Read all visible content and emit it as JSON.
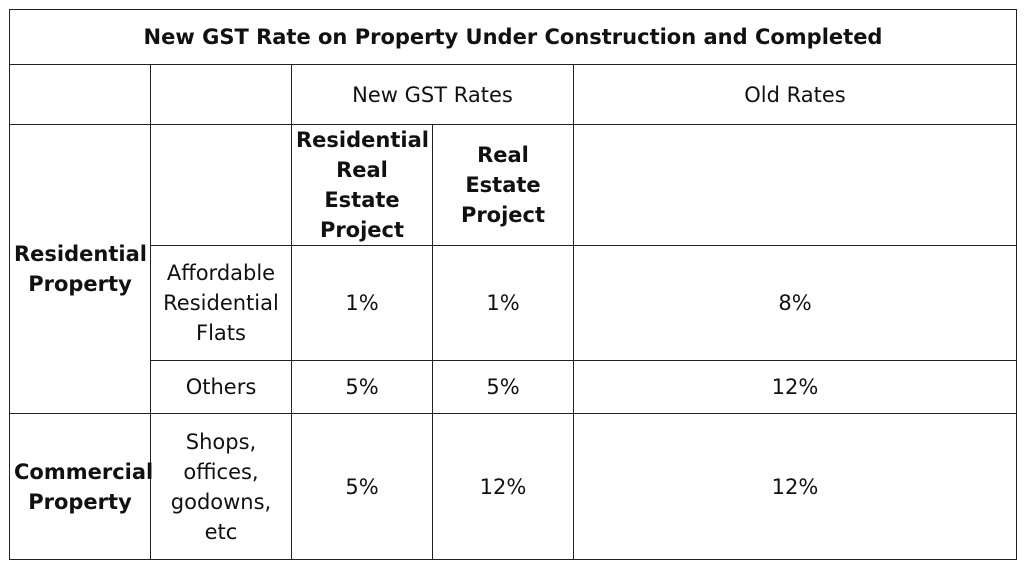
{
  "title": "New GST Rate on Property Under Construction and Completed",
  "headers": {
    "new_gst_rates": "New GST Rates",
    "old_rates": "Old Rates",
    "residential_real_estate_project": "Residential Real Estate Project",
    "real_estate_project": "Real Estate Project"
  },
  "categories": {
    "residential": {
      "label": "Residential Property",
      "rows": [
        {
          "subcategory": "Affordable Residential Flats",
          "rrep_rate": "1%",
          "rep_rate": "1%",
          "old_rate": "8%"
        },
        {
          "subcategory": "Others",
          "rrep_rate": "5%",
          "rep_rate": "5%",
          "old_rate": "12%"
        }
      ]
    },
    "commercial": {
      "label": "Commercial Property",
      "rows": [
        {
          "subcategory": "Shops, offices, godowns, etc",
          "rrep_rate": "5%",
          "rep_rate": "12%",
          "old_rate": "12%"
        }
      ]
    }
  }
}
